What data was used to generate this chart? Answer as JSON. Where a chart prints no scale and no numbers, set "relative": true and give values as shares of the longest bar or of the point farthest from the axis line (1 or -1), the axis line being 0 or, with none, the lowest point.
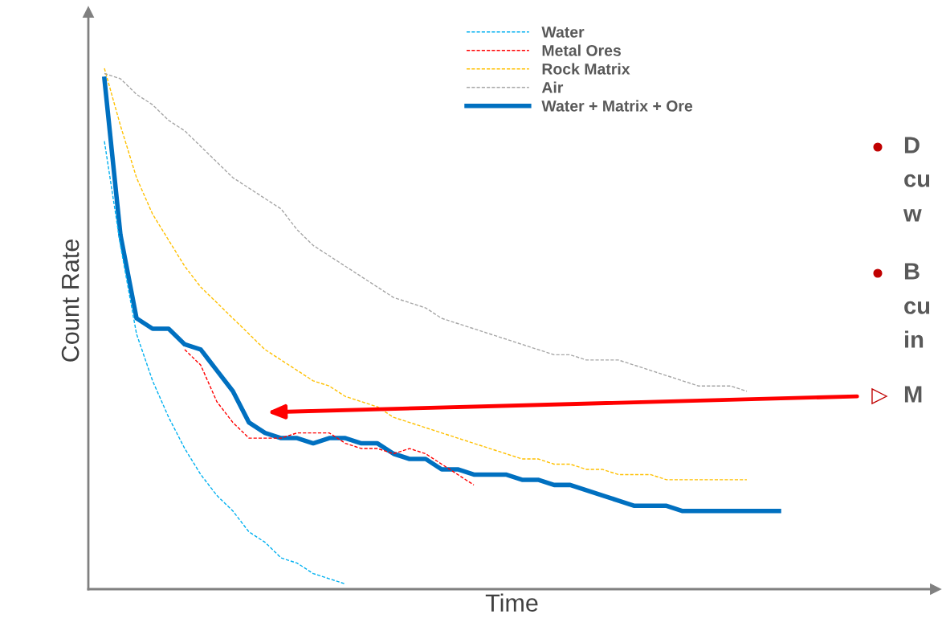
{
  "chart_data": {
    "type": "line",
    "relative": true,
    "xlabel": "Time",
    "ylabel": "Count Rate",
    "categories": [
      null,
      null,
      null,
      null,
      null,
      null,
      null,
      null,
      null,
      null,
      null,
      null,
      null,
      null,
      null,
      null,
      null,
      null,
      null,
      null,
      null,
      null,
      null,
      null,
      null,
      null,
      null,
      null,
      null,
      null,
      null,
      null,
      null,
      null,
      null,
      null,
      null,
      null,
      null,
      null,
      null,
      null,
      null
    ],
    "series": [
      {
        "name": "Water",
        "color": "#00b0f0",
        "line_style": "dashed",
        "values": [
          0.86,
          0.66,
          0.49,
          0.4,
          0.33,
          0.27,
          0.22,
          0.18,
          0.15,
          0.11,
          0.09,
          0.06,
          0.05,
          0.03,
          0.02,
          0.01,
          null,
          null,
          null,
          null,
          null,
          null,
          null,
          null,
          null,
          null,
          null,
          null,
          null,
          null,
          null,
          null,
          null,
          null,
          null,
          null,
          null,
          null,
          null,
          null,
          null,
          null,
          null
        ]
      },
      {
        "name": "Metal Ores",
        "color": "#ff0000",
        "line_style": "dashed",
        "values": [
          null,
          null,
          null,
          null,
          null,
          0.46,
          0.43,
          0.36,
          0.32,
          0.29,
          0.29,
          0.29,
          0.3,
          0.3,
          0.3,
          0.28,
          0.27,
          0.27,
          0.26,
          0.27,
          0.26,
          0.24,
          0.22,
          0.2,
          null,
          null,
          null,
          null,
          null,
          null,
          null,
          null,
          null,
          null,
          null,
          null,
          null,
          null,
          null,
          null,
          null,
          null,
          null
        ]
      },
      {
        "name": "Rock Matrix",
        "color": "#ffc000",
        "line_style": "dashed",
        "values": [
          1.0,
          0.89,
          0.79,
          0.72,
          0.67,
          0.62,
          0.58,
          0.55,
          0.52,
          0.49,
          0.46,
          0.44,
          0.42,
          0.4,
          0.39,
          0.37,
          0.36,
          0.35,
          0.33,
          0.32,
          0.31,
          0.3,
          0.29,
          0.28,
          0.27,
          0.26,
          0.25,
          0.25,
          0.24,
          0.24,
          0.23,
          0.23,
          0.22,
          0.22,
          0.22,
          0.21,
          0.21,
          0.21,
          0.21,
          0.21,
          0.21,
          null,
          null
        ]
      },
      {
        "name": "Air",
        "color": "#a6a6a6",
        "line_style": "dashed",
        "values": [
          0.99,
          0.98,
          0.95,
          0.93,
          0.9,
          0.88,
          0.85,
          0.82,
          0.79,
          0.77,
          0.75,
          0.73,
          0.69,
          0.66,
          0.64,
          0.62,
          0.6,
          0.58,
          0.56,
          0.55,
          0.54,
          0.52,
          0.51,
          0.5,
          0.49,
          0.48,
          0.47,
          0.46,
          0.45,
          0.45,
          0.44,
          0.44,
          0.44,
          0.43,
          0.42,
          0.41,
          0.4,
          0.39,
          0.39,
          0.39,
          0.38,
          null,
          null
        ]
      },
      {
        "name": "Water + Matrix + Ore",
        "color": "#0070c0",
        "line_style": "solid",
        "values": [
          0.98,
          0.68,
          0.52,
          0.5,
          0.5,
          0.47,
          0.46,
          0.42,
          0.38,
          0.32,
          0.3,
          0.29,
          0.29,
          0.28,
          0.29,
          0.29,
          0.28,
          0.28,
          0.26,
          0.25,
          0.25,
          0.23,
          0.23,
          0.22,
          0.22,
          0.22,
          0.21,
          0.21,
          0.2,
          0.2,
          0.19,
          0.18,
          0.17,
          0.16,
          0.16,
          0.16,
          0.15,
          0.15,
          0.15,
          0.15,
          0.15,
          0.15,
          0.15
        ]
      }
    ],
    "legend": "top",
    "grid": false,
    "tick_labels": false,
    "annotations": [
      "D",
      "cu",
      "w",
      "B",
      "cu",
      "in",
      "M"
    ]
  }
}
